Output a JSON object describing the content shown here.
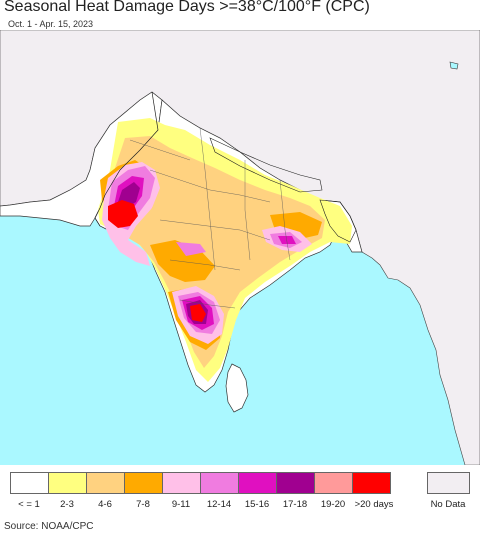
{
  "header": {
    "title": "Seasonal Heat Damage Days >=38°C/100°F (CPC)",
    "subtitle": "Oct. 1 - Apr. 15, 2023"
  },
  "map": {
    "colors": {
      "ocean": "#aaf8ff",
      "outside_land": "#f2eef2",
      "none": "#ffffff",
      "c2_3": "#ffff80",
      "c4_6": "#ffd280",
      "c7_8": "#ffaa00",
      "c9_11": "#ffc0e8",
      "c12_14": "#f07ce0",
      "c15_16": "#e010c0",
      "c17_18": "#a00090",
      "c19_20": "#ff9a9a",
      "c20plus": "#ff0000",
      "border": "#222222"
    }
  },
  "legend": {
    "items": [
      {
        "label": "< = 1",
        "color": "#ffffff"
      },
      {
        "label": "2-3",
        "color": "#ffff80"
      },
      {
        "label": "4-6",
        "color": "#ffd280"
      },
      {
        "label": "7-8",
        "color": "#ffaa00"
      },
      {
        "label": "9-11",
        "color": "#ffc0e8"
      },
      {
        "label": "12-14",
        "color": "#f07ce0"
      },
      {
        "label": "15-16",
        "color": "#e010c0"
      },
      {
        "label": "17-18",
        "color": "#a00090"
      },
      {
        "label": "19-20",
        "color": "#ff9a9a"
      },
      {
        "label": ">20 days",
        "color": "#ff0000"
      }
    ],
    "nodata": {
      "label": "No Data",
      "color": "#f2eef2"
    }
  },
  "footer": {
    "source": "Source: NOAA/CPC"
  }
}
